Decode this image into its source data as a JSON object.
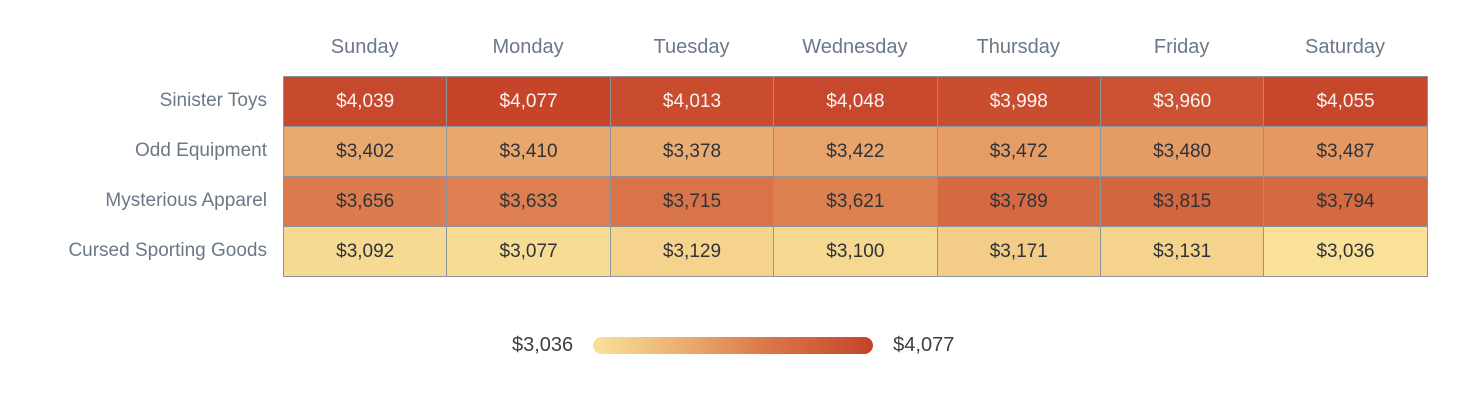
{
  "chart_data": {
    "type": "heatmap",
    "columns": [
      "Sunday",
      "Monday",
      "Tuesday",
      "Wednesday",
      "Thursday",
      "Friday",
      "Saturday"
    ],
    "rows": [
      "Sinister Toys",
      "Odd Equipment",
      "Mysterious Apparel",
      "Cursed Sporting Goods"
    ],
    "values": [
      [
        4039,
        4077,
        4013,
        4048,
        3998,
        3960,
        4055
      ],
      [
        3402,
        3410,
        3378,
        3422,
        3472,
        3480,
        3487
      ],
      [
        3656,
        3633,
        3715,
        3621,
        3789,
        3815,
        3794
      ],
      [
        3092,
        3077,
        3129,
        3100,
        3171,
        3131,
        3036
      ]
    ],
    "value_prefix": "$",
    "min": 3036,
    "max": 4077,
    "legend": {
      "min_label": "$3,036",
      "max_label": "$4,077"
    },
    "colors": {
      "scale_stops": [
        {
          "t": 0.0,
          "color": "#F9E298"
        },
        {
          "t": 0.35,
          "color": "#E8A96E"
        },
        {
          "t": 0.6,
          "color": "#DC7A4C"
        },
        {
          "t": 1.0,
          "color": "#C5442A"
        }
      ],
      "grid_line": "#8E9499",
      "axis_label": "#6B7888",
      "cell_text_dark": "#2F3338",
      "cell_text_light": "#FBF3F0",
      "legend_text": "#3B3F44"
    },
    "layout": {
      "grid_on": false,
      "legend_position": "bottom-center"
    }
  }
}
